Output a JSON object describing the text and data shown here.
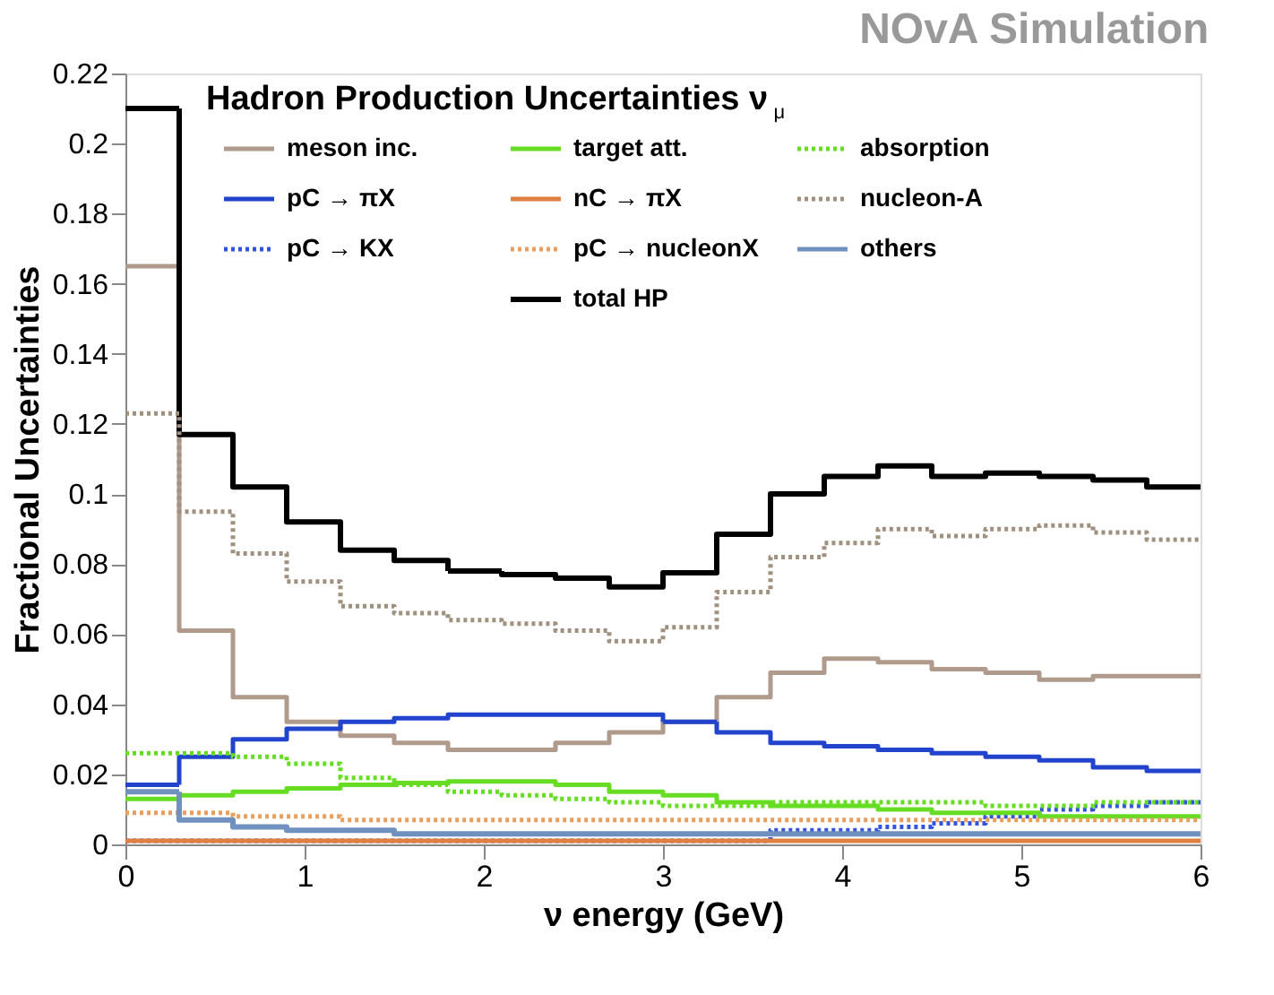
{
  "chart_data": {
    "type": "histogram",
    "title": "NOvA Simulation",
    "annotations": [
      "Hadron Production Uncertainties  ν$_{μ}$"
    ],
    "xlabel": "ν energy (GeV)",
    "ylabel": "Fractional Uncertainties",
    "bins": [
      0,
      0.3,
      0.6,
      0.9,
      1.2,
      1.5,
      1.8,
      2.1,
      2.4,
      2.7,
      3.0,
      3.3,
      3.6,
      3.9,
      4.2,
      4.5,
      4.8,
      5.1,
      5.4,
      5.7,
      6.0
    ],
    "xlim": [
      0,
      6
    ],
    "xticks": [
      0,
      1,
      2,
      3,
      4,
      5,
      6
    ],
    "ylim": [
      0,
      0.22
    ],
    "yticks": [
      0,
      0.02,
      0.04,
      0.06,
      0.08,
      0.1,
      0.12,
      0.14,
      0.16,
      0.18,
      0.2,
      0.22
    ],
    "grid": false,
    "legend": "top",
    "series": [
      {
        "name": "meson inc.",
        "color": "#b09a8c",
        "line_style": "solid",
        "values": [
          0.165,
          0.061,
          0.042,
          0.035,
          0.031,
          0.029,
          0.027,
          0.027,
          0.029,
          0.032,
          0.035,
          0.042,
          0.049,
          0.053,
          0.052,
          0.05,
          0.049,
          0.047,
          0.048,
          0.048
        ]
      },
      {
        "name": "pC → πX",
        "color": "#2244cc",
        "line_style": "solid",
        "values": [
          0.017,
          0.025,
          0.03,
          0.033,
          0.035,
          0.036,
          0.037,
          0.037,
          0.037,
          0.037,
          0.035,
          0.032,
          0.029,
          0.028,
          0.027,
          0.026,
          0.025,
          0.024,
          0.022,
          0.021
        ]
      },
      {
        "name": "pC → KX",
        "color": "#3355dd",
        "line_style": "dotted",
        "values": [
          0.001,
          0.001,
          0.001,
          0.001,
          0.001,
          0.001,
          0.001,
          0.001,
          0.001,
          0.001,
          0.001,
          0.001,
          0.004,
          0.004,
          0.005,
          0.006,
          0.008,
          0.01,
          0.011,
          0.012
        ]
      },
      {
        "name": "target att.",
        "color": "#66dd22",
        "line_style": "solid",
        "values": [
          0.013,
          0.014,
          0.015,
          0.016,
          0.017,
          0.0175,
          0.018,
          0.018,
          0.017,
          0.015,
          0.014,
          0.012,
          0.011,
          0.011,
          0.01,
          0.009,
          0.009,
          0.008,
          0.008,
          0.008
        ]
      },
      {
        "name": "nC → πX",
        "color": "#e08040",
        "line_style": "solid",
        "values": [
          0.001,
          0.001,
          0.001,
          0.001,
          0.001,
          0.001,
          0.001,
          0.001,
          0.001,
          0.001,
          0.001,
          0.001,
          0.001,
          0.001,
          0.001,
          0.001,
          0.001,
          0.001,
          0.001,
          0.001
        ]
      },
      {
        "name": "pC → nucleonX",
        "color": "#e8a060",
        "line_style": "dotted",
        "values": [
          0.009,
          0.009,
          0.008,
          0.008,
          0.007,
          0.007,
          0.007,
          0.007,
          0.007,
          0.007,
          0.007,
          0.007,
          0.007,
          0.007,
          0.007,
          0.007,
          0.007,
          0.007,
          0.007,
          0.007
        ]
      },
      {
        "name": "total HP",
        "color": "#000000",
        "line_style": "solid",
        "values": [
          0.21,
          0.117,
          0.102,
          0.092,
          0.084,
          0.081,
          0.078,
          0.077,
          0.076,
          0.0735,
          0.0775,
          0.0885,
          0.1,
          0.105,
          0.108,
          0.105,
          0.106,
          0.105,
          0.104,
          0.102
        ]
      },
      {
        "name": "absorption",
        "color": "#66dd22",
        "line_style": "dotted",
        "values": [
          0.026,
          0.026,
          0.025,
          0.023,
          0.019,
          0.017,
          0.015,
          0.014,
          0.013,
          0.012,
          0.011,
          0.011,
          0.012,
          0.012,
          0.012,
          0.012,
          0.011,
          0.011,
          0.012,
          0.012
        ]
      },
      {
        "name": "nucleon-A",
        "color": "#a09080",
        "line_style": "dotted",
        "values": [
          0.123,
          0.095,
          0.083,
          0.075,
          0.068,
          0.066,
          0.064,
          0.063,
          0.061,
          0.058,
          0.062,
          0.072,
          0.082,
          0.086,
          0.09,
          0.088,
          0.09,
          0.091,
          0.089,
          0.087
        ]
      },
      {
        "name": "others",
        "color": "#7090c0",
        "line_style": "solid",
        "values": [
          0.015,
          0.007,
          0.005,
          0.004,
          0.004,
          0.003,
          0.003,
          0.003,
          0.003,
          0.003,
          0.003,
          0.003,
          0.003,
          0.003,
          0.003,
          0.003,
          0.003,
          0.003,
          0.003,
          0.003
        ]
      }
    ]
  }
}
